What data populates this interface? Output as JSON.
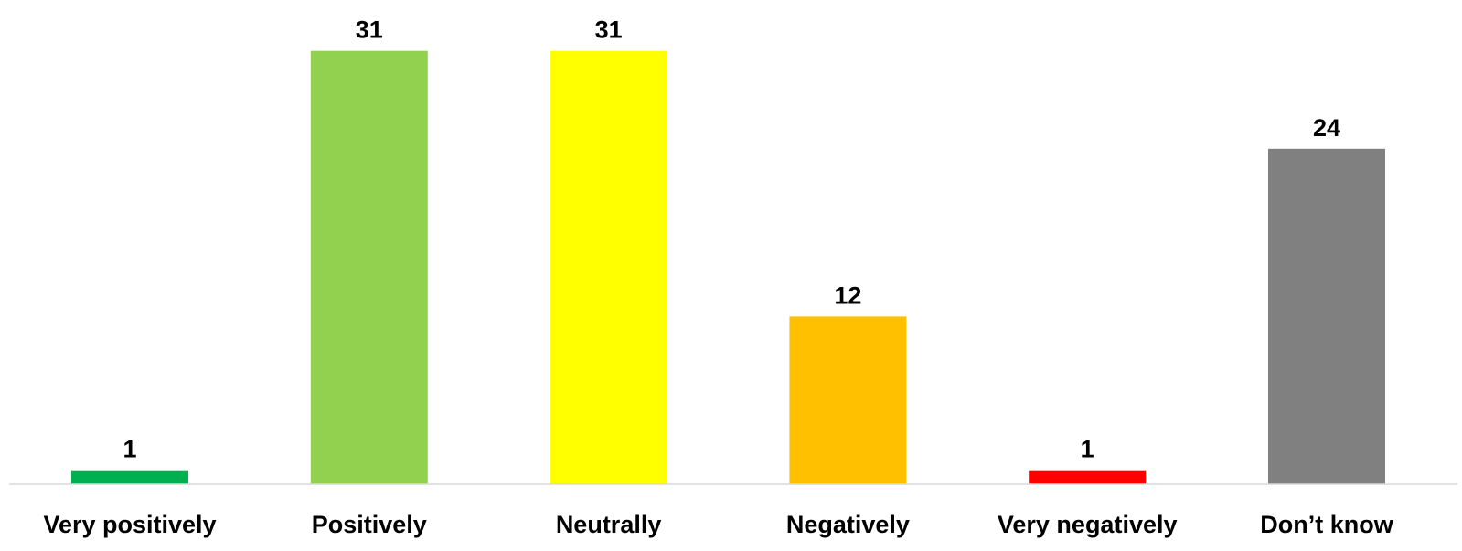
{
  "chart_data": {
    "type": "bar",
    "categories": [
      "Very positively",
      "Positively",
      "Neutrally",
      "Negatively",
      "Very negatively",
      "Don’t know"
    ],
    "values": [
      1,
      31,
      31,
      12,
      1,
      24
    ],
    "colors": [
      "#00B050",
      "#92D050",
      "#FFFF00",
      "#FFC000",
      "#FF0000",
      "#808080"
    ],
    "title": "",
    "xlabel": "",
    "ylabel": "",
    "grid": false,
    "legend": "none"
  }
}
